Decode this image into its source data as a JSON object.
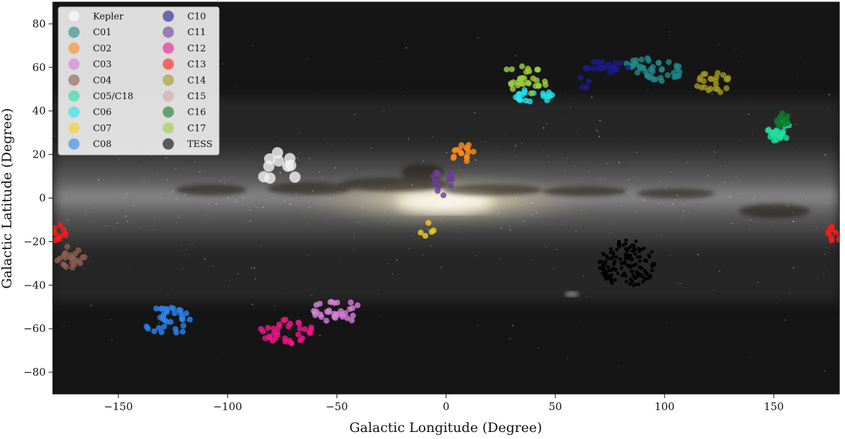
{
  "chart_data": {
    "type": "scatter",
    "title": "",
    "xlabel": "Galactic Longitude (Degree)",
    "ylabel": "Galactic Latitude (Degree)",
    "xlim": [
      -180,
      180
    ],
    "ylim": [
      -90,
      90
    ],
    "xticks": [
      -150,
      -100,
      -50,
      0,
      50,
      100,
      150
    ],
    "yticks": [
      -80,
      -60,
      -40,
      -20,
      0,
      20,
      40,
      60,
      80
    ],
    "tick_labels_x": [
      "−150",
      "−100",
      "−50",
      "0",
      "50",
      "100",
      "150"
    ],
    "tick_labels_y": [
      "−80",
      "−60",
      "−40",
      "−20",
      "0",
      "20",
      "40",
      "60",
      "80"
    ],
    "grid": false,
    "background": "Milky Way all-sky image",
    "legend": {
      "position": "top-left",
      "columns": 2
    },
    "series": [
      {
        "name": "Kepler",
        "color": "#f2f2f2",
        "clusters": [
          {
            "lon": -76,
            "lat": 13,
            "w": 9,
            "h": 8,
            "n": 10
          }
        ]
      },
      {
        "name": "C01",
        "color": "#1f8a8a",
        "clusters": [
          {
            "lon": 90,
            "lat": 61,
            "w": 9,
            "h": 4,
            "n": 22
          },
          {
            "lon": 100,
            "lat": 58,
            "w": 9,
            "h": 5,
            "n": 22
          }
        ]
      },
      {
        "name": "C02",
        "color": "#ff8c1a",
        "clusters": [
          {
            "lon": 8,
            "lat": 20,
            "w": 5,
            "h": 5,
            "n": 16
          }
        ]
      },
      {
        "name": "C03",
        "color": "#d47fd9",
        "clusters": [
          {
            "lon": -50,
            "lat": -52,
            "w": 13,
            "h": 5,
            "n": 32
          }
        ]
      },
      {
        "name": "C04",
        "color": "#8b5e4e",
        "clusters": [
          {
            "lon": -172,
            "lat": -27,
            "w": 7,
            "h": 5,
            "n": 24
          }
        ]
      },
      {
        "name": "C05/C18",
        "color": "#22e0a0",
        "clusters": [
          {
            "lon": 152,
            "lat": 31,
            "w": 6,
            "h": 5,
            "n": 26
          }
        ]
      },
      {
        "name": "C06",
        "color": "#22e5f0",
        "clusters": [
          {
            "lon": 40,
            "lat": 47,
            "w": 9,
            "h": 3,
            "n": 20
          }
        ]
      },
      {
        "name": "C07",
        "color": "#f5d020",
        "clusters": [
          {
            "lon": -10,
            "lat": -13,
            "w": 5,
            "h": 5,
            "n": 5
          }
        ]
      },
      {
        "name": "C08",
        "color": "#2b85f0",
        "clusters": [
          {
            "lon": -128,
            "lat": -57,
            "w": 12,
            "h": 7,
            "n": 34
          }
        ]
      },
      {
        "name": "C10",
        "color": "#1a1a8a",
        "clusters": [
          {
            "lon": 72,
            "lat": 60,
            "w": 12,
            "h": 3,
            "n": 22
          },
          {
            "lon": 63,
            "lat": 53,
            "w": 4,
            "h": 3,
            "n": 5
          }
        ]
      },
      {
        "name": "C11",
        "color": "#6a3d9a",
        "clusters": [
          {
            "lon": -2,
            "lat": 7,
            "w": 6,
            "h": 6,
            "n": 16
          }
        ]
      },
      {
        "name": "C12",
        "color": "#f0158a",
        "clusters": [
          {
            "lon": -73,
            "lat": -61,
            "w": 12,
            "h": 6,
            "n": 34
          }
        ]
      },
      {
        "name": "C13",
        "color": "#ff1a1a",
        "clusters": [
          {
            "lon": -178,
            "lat": -16,
            "w": 4,
            "h": 4,
            "n": 12
          },
          {
            "lon": 178,
            "lat": -16,
            "w": 4,
            "h": 4,
            "n": 12
          }
        ]
      },
      {
        "name": "C14",
        "color": "#a3971a",
        "clusters": [
          {
            "lon": 122,
            "lat": 53,
            "w": 8,
            "h": 5,
            "n": 24
          }
        ]
      },
      {
        "name": "C15",
        "color": "#d4a5a5",
        "clusters": []
      },
      {
        "name": "C16",
        "color": "#0f7a2a",
        "clusters": [
          {
            "lon": 153,
            "lat": 36,
            "w": 5,
            "h": 3,
            "n": 14
          }
        ]
      },
      {
        "name": "C17",
        "color": "#9ccf40",
        "clusters": [
          {
            "lon": 38,
            "lat": 52,
            "w": 9,
            "h": 4,
            "n": 22
          },
          {
            "lon": 35,
            "lat": 59,
            "w": 8,
            "h": 1.5,
            "n": 8
          }
        ]
      },
      {
        "name": "TESS",
        "color": "#000000",
        "clusters": [
          {
            "lon": 83,
            "lat": -30,
            "w": 13,
            "h": 11,
            "n": 150
          }
        ]
      }
    ]
  }
}
